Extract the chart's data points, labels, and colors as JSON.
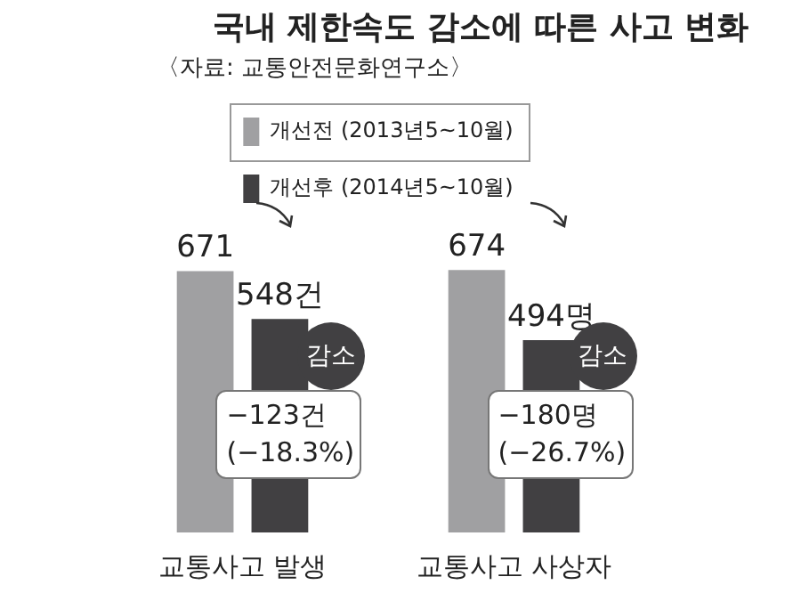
{
  "chart_data": {
    "type": "bar",
    "title": "국내 제한속도 감소에 따른 사고 변화",
    "subtitle": "〈자료: 교통안전문화연구소〉",
    "categories": [
      "교통사고 발생",
      "교통사고 사상자"
    ],
    "series": [
      {
        "name": "개선전 (2013년5~10월)",
        "color": "#a0a0a2",
        "values": [
          671,
          674
        ],
        "value_labels": [
          "671",
          "674"
        ]
      },
      {
        "name": "개선후 (2014년5~10월)",
        "color": "#414042",
        "values": [
          548,
          494
        ],
        "value_labels": [
          "548건",
          "494명"
        ]
      }
    ],
    "annotations": [
      "감소",
      "−123건\n(−18.3%)",
      "감소",
      "−180명\n(−26.7%)"
    ],
    "legend": "top",
    "grid": false
  }
}
